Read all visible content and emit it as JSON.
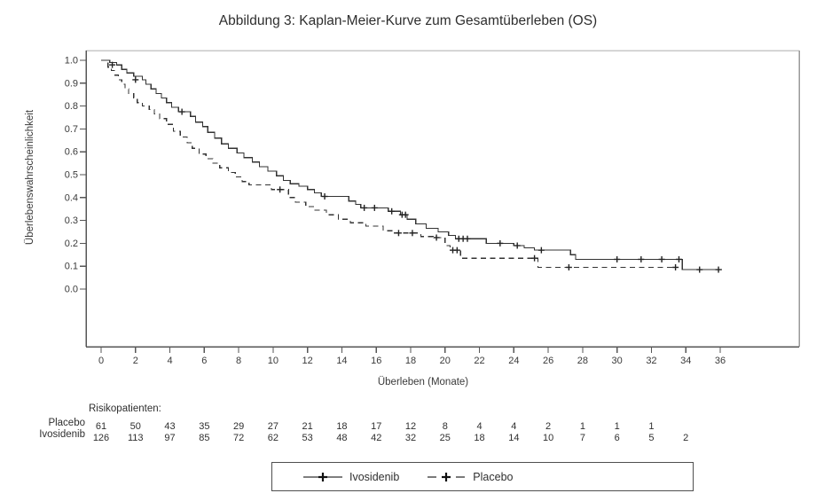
{
  "title": "Abbildung 3: Kaplan-Meier-Kurve zum Gesamtüberleben (OS)",
  "colors": {
    "curve": "#333333",
    "axis": "#565656",
    "box_top": "#c8c8c8",
    "box_right": "#9a9a9a",
    "tick_text": "#3a3a3a",
    "risk_text": "#2f2f2f"
  },
  "chart_data": {
    "type": "line",
    "subtype": "kaplan-meier-step",
    "title": "Abbildung 3: Kaplan-Meier-Kurve zum Gesamtüberleben (OS)",
    "xlabel": "Überleben (Monate)",
    "ylabel": "Überlebenswahrscheinlichkeit",
    "xlim": [
      0,
      36
    ],
    "ylim": [
      0.0,
      1.0
    ],
    "xticks": [
      0,
      2,
      4,
      6,
      8,
      10,
      12,
      14,
      16,
      18,
      20,
      22,
      24,
      26,
      28,
      30,
      32,
      34,
      36
    ],
    "yticks": [
      1.0,
      0.9,
      0.8,
      0.7,
      0.6,
      0.5,
      0.4,
      0.3,
      0.2,
      0.1,
      0.0
    ],
    "grid": false,
    "legend": {
      "position": "bottom",
      "entries": [
        {
          "label": "Ivosidenib",
          "line": "solid",
          "marker": "plus"
        },
        {
          "label": "Placebo",
          "line": "dashed",
          "marker": "plus"
        }
      ]
    },
    "series": [
      {
        "name": "Ivosidenib",
        "line": "solid",
        "end_time": 36.1,
        "steps": [
          [
            0,
            1.0
          ],
          [
            0.5,
            0.99
          ],
          [
            0.9,
            0.98
          ],
          [
            1.2,
            0.96
          ],
          [
            1.5,
            0.945
          ],
          [
            1.9,
            0.93
          ],
          [
            2.4,
            0.915
          ],
          [
            2.6,
            0.895
          ],
          [
            2.9,
            0.875
          ],
          [
            3.2,
            0.855
          ],
          [
            3.5,
            0.835
          ],
          [
            3.8,
            0.815
          ],
          [
            4.1,
            0.795
          ],
          [
            4.5,
            0.775
          ],
          [
            5.2,
            0.755
          ],
          [
            5.5,
            0.73
          ],
          [
            5.9,
            0.71
          ],
          [
            6.2,
            0.685
          ],
          [
            6.6,
            0.66
          ],
          [
            7.0,
            0.635
          ],
          [
            7.4,
            0.615
          ],
          [
            7.9,
            0.595
          ],
          [
            8.3,
            0.575
          ],
          [
            8.8,
            0.555
          ],
          [
            9.2,
            0.535
          ],
          [
            9.7,
            0.515
          ],
          [
            10.2,
            0.495
          ],
          [
            10.6,
            0.475
          ],
          [
            11.0,
            0.46
          ],
          [
            11.5,
            0.45
          ],
          [
            12.0,
            0.435
          ],
          [
            12.4,
            0.42
          ],
          [
            12.8,
            0.405
          ],
          [
            14.4,
            0.385
          ],
          [
            14.8,
            0.37
          ],
          [
            15.1,
            0.355
          ],
          [
            16.7,
            0.34
          ],
          [
            17.4,
            0.325
          ],
          [
            17.8,
            0.305
          ],
          [
            18.3,
            0.285
          ],
          [
            18.9,
            0.265
          ],
          [
            19.6,
            0.25
          ],
          [
            20.2,
            0.235
          ],
          [
            20.6,
            0.22
          ],
          [
            22.4,
            0.2
          ],
          [
            24.0,
            0.19
          ],
          [
            24.6,
            0.18
          ],
          [
            25.2,
            0.17
          ],
          [
            27.3,
            0.15
          ],
          [
            27.6,
            0.13
          ],
          [
            33.8,
            0.085
          ]
        ],
        "censors": [
          [
            0.65,
            0.98
          ],
          [
            2.0,
            0.915
          ],
          [
            4.7,
            0.775
          ],
          [
            13.0,
            0.405
          ],
          [
            15.3,
            0.355
          ],
          [
            15.9,
            0.355
          ],
          [
            16.9,
            0.34
          ],
          [
            17.5,
            0.325
          ],
          [
            17.7,
            0.325
          ],
          [
            20.8,
            0.22
          ],
          [
            21.05,
            0.22
          ],
          [
            21.3,
            0.22
          ],
          [
            23.2,
            0.2
          ],
          [
            24.2,
            0.19
          ],
          [
            25.6,
            0.17
          ],
          [
            30.0,
            0.13
          ],
          [
            31.4,
            0.13
          ],
          [
            32.6,
            0.13
          ],
          [
            33.6,
            0.13
          ],
          [
            34.8,
            0.085
          ],
          [
            35.9,
            0.085
          ]
        ]
      },
      {
        "name": "Placebo",
        "line": "dashed",
        "end_time": 33.4,
        "steps": [
          [
            0,
            1.0
          ],
          [
            0.4,
            0.97
          ],
          [
            0.6,
            0.955
          ],
          [
            0.8,
            0.935
          ],
          [
            1.0,
            0.915
          ],
          [
            1.2,
            0.895
          ],
          [
            1.4,
            0.875
          ],
          [
            1.6,
            0.855
          ],
          [
            1.9,
            0.835
          ],
          [
            2.1,
            0.815
          ],
          [
            2.4,
            0.8
          ],
          [
            2.8,
            0.785
          ],
          [
            3.1,
            0.765
          ],
          [
            3.4,
            0.745
          ],
          [
            3.8,
            0.72
          ],
          [
            4.2,
            0.69
          ],
          [
            4.6,
            0.665
          ],
          [
            5.0,
            0.64
          ],
          [
            5.3,
            0.615
          ],
          [
            5.7,
            0.59
          ],
          [
            6.1,
            0.57
          ],
          [
            6.5,
            0.55
          ],
          [
            6.9,
            0.53
          ],
          [
            7.4,
            0.51
          ],
          [
            7.8,
            0.49
          ],
          [
            8.2,
            0.47
          ],
          [
            8.6,
            0.455
          ],
          [
            9.9,
            0.435
          ],
          [
            10.9,
            0.4
          ],
          [
            11.3,
            0.38
          ],
          [
            11.9,
            0.36
          ],
          [
            12.4,
            0.345
          ],
          [
            13.1,
            0.325
          ],
          [
            13.8,
            0.305
          ],
          [
            14.5,
            0.29
          ],
          [
            15.4,
            0.275
          ],
          [
            16.4,
            0.255
          ],
          [
            17.0,
            0.245
          ],
          [
            18.6,
            0.23
          ],
          [
            19.3,
            0.225
          ],
          [
            20.0,
            0.19
          ],
          [
            20.3,
            0.17
          ],
          [
            20.9,
            0.135
          ],
          [
            25.4,
            0.095
          ]
        ],
        "censors": [
          [
            10.4,
            0.435
          ],
          [
            17.3,
            0.245
          ],
          [
            18.1,
            0.245
          ],
          [
            19.5,
            0.225
          ],
          [
            20.45,
            0.17
          ],
          [
            20.7,
            0.17
          ],
          [
            25.2,
            0.135
          ],
          [
            27.2,
            0.095
          ],
          [
            33.4,
            0.095
          ]
        ]
      }
    ],
    "risk_table": {
      "label": "Risikopatienten:",
      "times": [
        0,
        2,
        4,
        6,
        8,
        10,
        12,
        14,
        16,
        18,
        20,
        22,
        24,
        26,
        28,
        30,
        32,
        34
      ],
      "rows": [
        {
          "name": "Placebo",
          "counts": [
            61,
            50,
            43,
            35,
            29,
            27,
            21,
            18,
            17,
            12,
            8,
            4,
            4,
            2,
            1,
            1,
            1
          ]
        },
        {
          "name": "Ivosidenib",
          "counts": [
            126,
            113,
            97,
            85,
            72,
            62,
            53,
            48,
            42,
            32,
            25,
            18,
            14,
            10,
            7,
            6,
            5,
            2
          ]
        }
      ]
    }
  }
}
